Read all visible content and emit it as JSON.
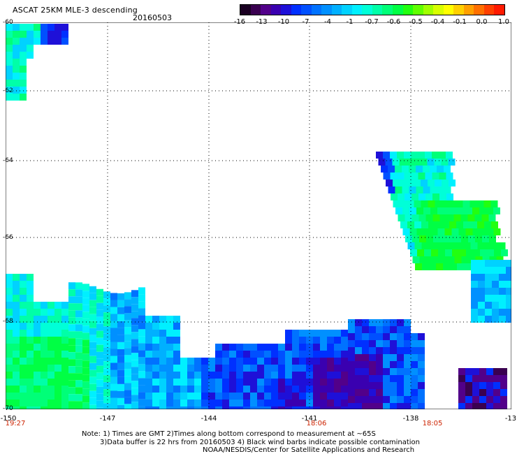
{
  "header": {
    "title": "ASCAT 25KM MLE-3 descending",
    "date": "20160503"
  },
  "colorbar": {
    "colors": [
      "#1a0022",
      "#3a0050",
      "#52008a",
      "#3a00b0",
      "#1e10d8",
      "#0030ff",
      "#0050ff",
      "#0072ff",
      "#0090ff",
      "#00b0ff",
      "#00d2ff",
      "#00f0ff",
      "#00ffd8",
      "#00ffa8",
      "#00ff78",
      "#00ff44",
      "#22ff10",
      "#60ff00",
      "#a0ff00",
      "#d8ff00",
      "#ffff00",
      "#ffd000",
      "#ffa000",
      "#ff7000",
      "#ff4000",
      "#ff1a00"
    ],
    "labels": [
      "-16",
      "-13",
      "-10",
      "-7",
      "-4",
      "-1",
      "-0.7",
      "-0.6",
      "-0.5",
      "-0.4",
      "-0.1",
      "0.0",
      "1.0"
    ]
  },
  "axes": {
    "y_labels": [
      "-60",
      "-62",
      "-64",
      "-66",
      "-68",
      "-70"
    ],
    "x_labels": [
      "-150",
      "-147",
      "-144",
      "-141",
      "-138",
      "-13"
    ],
    "time_labels": [
      "19:27",
      "18:06",
      "18:05"
    ]
  },
  "notes": {
    "line1": "Note: 1) Times are GMT 2)Times along bottom correspond to measurement at ~65S",
    "line2": "3)Data buffer is 22 hrs from 20160503 4) Black wind barbs indicate possible contamination",
    "line3": "NOAA/NESDIS/Center for Satellite Applications and Research"
  }
}
